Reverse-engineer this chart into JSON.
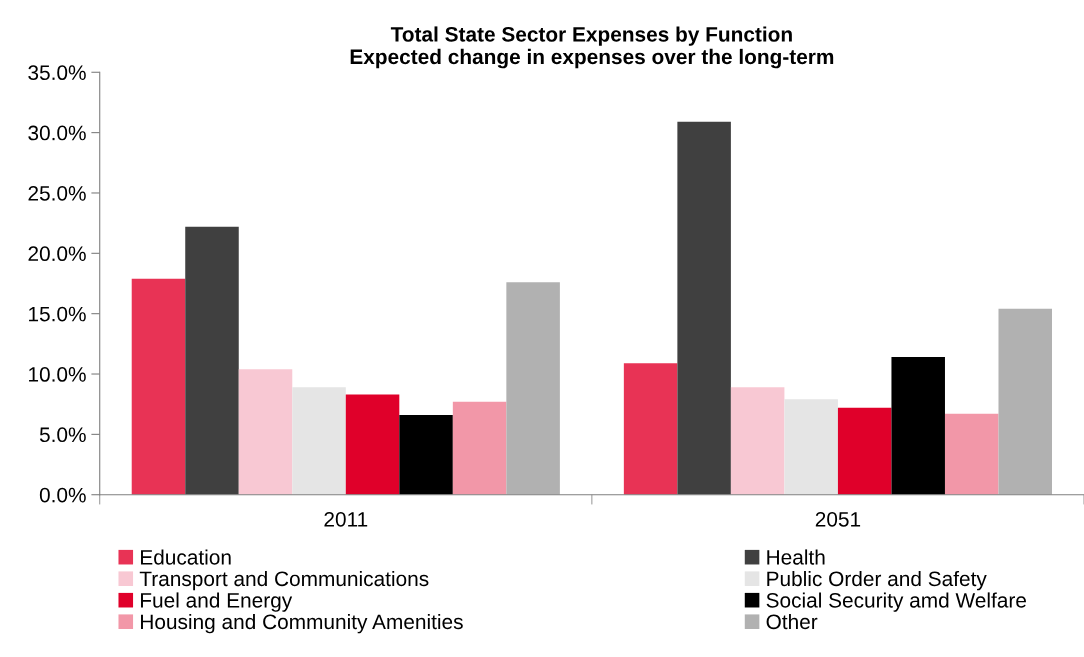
{
  "chart_data": {
    "type": "bar",
    "title": "Total State Sector Expenses by Function\nExpected change in expenses over the long-term",
    "categories": [
      "2011",
      "2051"
    ],
    "series": [
      {
        "name": "Education",
        "color": "#e83355",
        "values": [
          17.9,
          10.9
        ]
      },
      {
        "name": "Health",
        "color": "#404040",
        "values": [
          22.2,
          30.9
        ]
      },
      {
        "name": "Transport and Communications",
        "color": "#f8c8d3",
        "values": [
          10.4,
          8.9
        ]
      },
      {
        "name": "Public Order and Safety",
        "color": "#e5e5e5",
        "values": [
          8.9,
          7.9
        ]
      },
      {
        "name": "Fuel and Energy",
        "color": "#e0002a",
        "values": [
          8.3,
          7.2
        ]
      },
      {
        "name": "Social Security amd Welfare",
        "color": "#000000",
        "values": [
          6.6,
          11.4
        ]
      },
      {
        "name": "Housing and Community Amenities",
        "color": "#f297a8",
        "values": [
          7.7,
          6.7
        ]
      },
      {
        "name": "Other",
        "color": "#b1b1b1",
        "values": [
          17.6,
          15.4
        ]
      }
    ],
    "ylim": [
      0,
      35
    ],
    "yticks": [
      {
        "value": 0,
        "label": "0.0%"
      },
      {
        "value": 5,
        "label": "5.0%"
      },
      {
        "value": 10,
        "label": "10.0%"
      },
      {
        "value": 15,
        "label": "15.0%"
      },
      {
        "value": 20,
        "label": "20.0%"
      },
      {
        "value": 25,
        "label": "25.0%"
      },
      {
        "value": 30,
        "label": "30.0%"
      },
      {
        "value": 35,
        "label": "35.0%"
      }
    ],
    "grid": false,
    "legend": "bottom"
  }
}
